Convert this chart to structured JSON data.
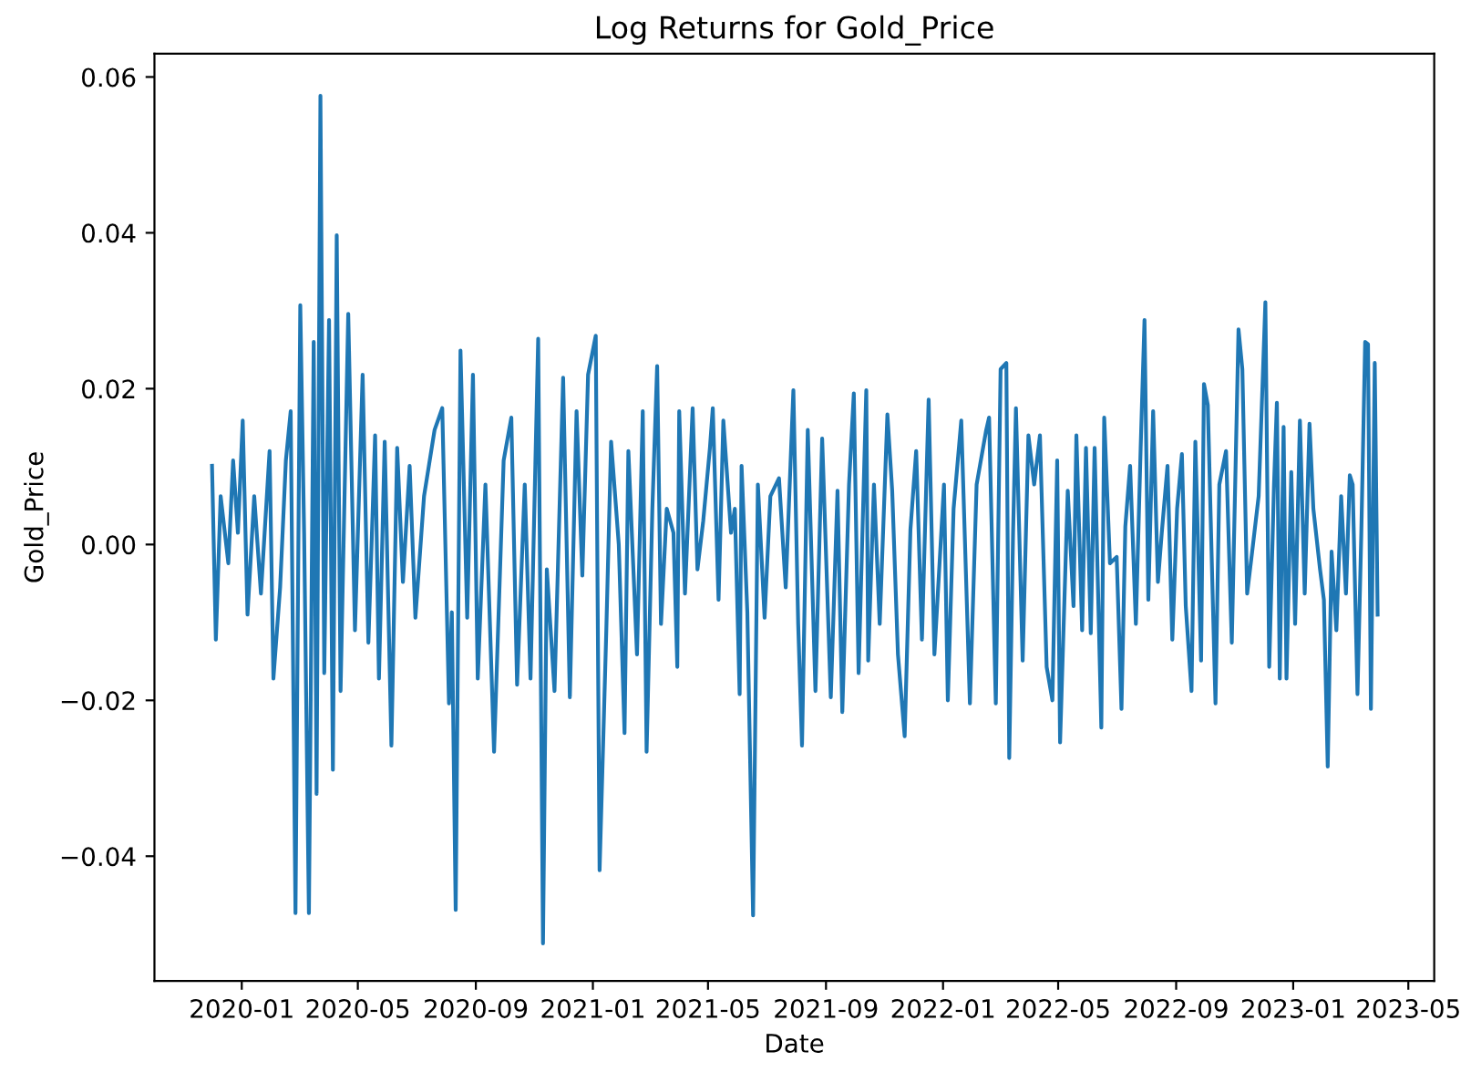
{
  "chart_data": {
    "type": "line",
    "title": "Log Returns for Gold_Price",
    "xlabel": "Date",
    "ylabel": "Gold_Price",
    "xlim": [
      "2019-10-02",
      "2023-05-28"
    ],
    "xticks": [
      "2020-01",
      "2020-05",
      "2020-09",
      "2021-01",
      "2021-05",
      "2021-09",
      "2022-01",
      "2022-05",
      "2022-09",
      "2023-01",
      "2023-05"
    ],
    "ylim": [
      -0.056,
      0.063
    ],
    "yticks": [
      {
        "value": -0.04,
        "label": "−0.04"
      },
      {
        "value": -0.02,
        "label": "−0.02"
      },
      {
        "value": 0,
        "label": "0.00"
      },
      0.02,
      0.04,
      0.06
    ],
    "grid": false,
    "legend": false,
    "marker": "none",
    "line_style": "solid",
    "series": [
      {
        "color": "#1f77b4",
        "x": [
          "2019-12-01",
          "2019-12-05",
          "2019-12-10",
          "2019-12-18",
          "2019-12-23",
          "2019-12-28",
          "2020-01-02",
          "2020-01-07",
          "2020-01-14",
          "2020-01-21",
          "2020-01-30",
          "2020-02-03",
          "2020-02-10",
          "2020-02-16",
          "2020-02-21",
          "2020-02-26",
          "2020-03-02",
          "2020-03-06",
          "2020-03-11",
          "2020-03-16",
          "2020-03-19",
          "2020-03-23",
          "2020-03-27",
          "2020-04-01",
          "2020-04-05",
          "2020-04-09",
          "2020-04-13",
          "2020-04-21",
          "2020-04-28",
          "2020-05-06",
          "2020-05-12",
          "2020-05-19",
          "2020-05-23",
          "2020-05-29",
          "2020-06-05",
          "2020-06-11",
          "2020-06-17",
          "2020-06-24",
          "2020-06-30",
          "2020-07-09",
          "2020-07-20",
          "2020-07-28",
          "2020-08-04",
          "2020-08-07",
          "2020-08-11",
          "2020-08-16",
          "2020-08-23",
          "2020-08-29",
          "2020-09-03",
          "2020-09-11",
          "2020-09-20",
          "2020-09-30",
          "2020-10-08",
          "2020-10-14",
          "2020-10-22",
          "2020-10-28",
          "2020-11-05",
          "2020-11-10",
          "2020-11-14",
          "2020-11-22",
          "2020-12-01",
          "2020-12-08",
          "2020-12-15",
          "2020-12-21",
          "2020-12-27",
          "2021-01-04",
          "2021-01-08",
          "2021-01-15",
          "2021-01-20",
          "2021-01-28",
          "2021-02-03",
          "2021-02-07",
          "2021-02-16",
          "2021-02-22",
          "2021-02-26",
          "2021-03-04",
          "2021-03-09",
          "2021-03-13",
          "2021-03-19",
          "2021-03-26",
          "2021-03-30",
          "2021-04-01",
          "2021-04-07",
          "2021-04-15",
          "2021-04-20",
          "2021-04-26",
          "2021-05-03",
          "2021-05-06",
          "2021-05-12",
          "2021-05-17",
          "2021-05-25",
          "2021-05-29",
          "2021-06-03",
          "2021-06-05",
          "2021-06-11",
          "2021-06-17",
          "2021-06-22",
          "2021-06-29",
          "2021-07-05",
          "2021-07-14",
          "2021-07-21",
          "2021-07-29",
          "2021-08-03",
          "2021-08-07",
          "2021-08-13",
          "2021-08-21",
          "2021-08-28",
          "2021-09-06",
          "2021-09-13",
          "2021-09-18",
          "2021-09-25",
          "2021-09-30",
          "2021-10-05",
          "2021-10-13",
          "2021-10-15",
          "2021-10-21",
          "2021-10-27",
          "2021-11-04",
          "2021-11-09",
          "2021-11-15",
          "2021-11-22",
          "2021-11-28",
          "2021-12-04",
          "2021-12-10",
          "2021-12-17",
          "2021-12-23",
          "2022-01-02",
          "2022-01-06",
          "2022-01-12",
          "2022-01-20",
          "2022-01-29",
          "2022-02-05",
          "2022-02-15",
          "2022-02-18",
          "2022-02-25",
          "2022-03-02",
          "2022-03-08",
          "2022-03-11",
          "2022-03-15",
          "2022-03-18",
          "2022-03-25",
          "2022-03-31",
          "2022-04-06",
          "2022-04-12",
          "2022-04-19",
          "2022-04-25",
          "2022-04-30",
          "2022-05-03",
          "2022-05-11",
          "2022-05-17",
          "2022-05-20",
          "2022-05-26",
          "2022-05-30",
          "2022-06-04",
          "2022-06-08",
          "2022-06-15",
          "2022-06-18",
          "2022-06-24",
          "2022-07-01",
          "2022-07-06",
          "2022-07-10",
          "2022-07-15",
          "2022-07-21",
          "2022-07-26",
          "2022-07-30",
          "2022-08-03",
          "2022-08-08",
          "2022-08-13",
          "2022-08-17",
          "2022-08-23",
          "2022-08-28",
          "2022-09-02",
          "2022-09-07",
          "2022-09-11",
          "2022-09-17",
          "2022-09-21",
          "2022-09-27",
          "2022-09-30",
          "2022-10-04",
          "2022-10-09",
          "2022-10-12",
          "2022-10-16",
          "2022-10-23",
          "2022-10-29",
          "2022-11-05",
          "2022-11-09",
          "2022-11-14",
          "2022-11-20",
          "2022-11-26",
          "2022-12-03",
          "2022-12-07",
          "2022-12-12",
          "2022-12-15",
          "2022-12-18",
          "2022-12-22",
          "2022-12-25",
          "2022-12-30",
          "2023-01-03",
          "2023-01-08",
          "2023-01-13",
          "2023-01-18",
          "2023-01-22",
          "2023-01-29",
          "2023-02-02",
          "2023-02-06",
          "2023-02-10",
          "2023-02-15",
          "2023-02-20",
          "2023-02-25",
          "2023-03-01",
          "2023-03-04",
          "2023-03-09",
          "2023-03-13",
          "2023-03-17",
          "2023-03-20",
          "2023-03-23",
          "2023-03-27",
          "2023-03-30"
        ],
        "values": [
          0.0101,
          -0.0122,
          0.0062,
          -0.0024,
          0.0108,
          0.0015,
          0.0159,
          -0.009,
          0.0062,
          -0.0063,
          0.012,
          -0.0172,
          -0.0055,
          0.0108,
          0.0171,
          -0.0473,
          0.0307,
          0.0015,
          -0.0473,
          0.026,
          -0.032,
          0.0576,
          -0.0165,
          0.0288,
          -0.0289,
          0.0397,
          -0.0188,
          0.0296,
          -0.011,
          0.0218,
          -0.0126,
          0.014,
          -0.0172,
          0.0132,
          -0.0258,
          0.0124,
          -0.0048,
          0.0101,
          -0.0094,
          0.0062,
          0.0147,
          0.0175,
          -0.0204,
          -0.0087,
          -0.0469,
          0.0249,
          -0.0094,
          0.0218,
          -0.0172,
          0.0077,
          -0.0266,
          0.0108,
          0.0163,
          -0.018,
          0.0077,
          -0.0172,
          0.0264,
          -0.0512,
          -0.0032,
          -0.0188,
          0.0214,
          -0.0196,
          0.0171,
          -0.004,
          0.0218,
          0.0268,
          -0.0418,
          -0.011,
          0.0132,
          0.0,
          -0.0242,
          0.012,
          -0.0141,
          0.0171,
          -0.0266,
          0.0046,
          0.0229,
          -0.0102,
          0.0046,
          0.0015,
          -0.0157,
          0.0171,
          -0.0063,
          0.0175,
          -0.0032,
          0.003,
          0.0124,
          0.0175,
          -0.0071,
          0.0159,
          0.0015,
          0.0046,
          -0.0192,
          0.0101,
          -0.0087,
          -0.0476,
          0.0077,
          -0.0094,
          0.0062,
          0.0085,
          -0.0055,
          0.0198,
          -0.0102,
          -0.0258,
          0.0147,
          -0.0188,
          0.0136,
          -0.0196,
          0.0069,
          -0.0215,
          0.0077,
          0.0194,
          -0.0165,
          0.0198,
          -0.0149,
          0.0077,
          -0.0102,
          0.0167,
          0.0069,
          -0.0141,
          -0.0246,
          0.0019,
          0.012,
          -0.0122,
          0.0186,
          -0.0141,
          0.0077,
          -0.02,
          0.0046,
          0.0159,
          -0.0204,
          0.0077,
          0.0147,
          0.0163,
          -0.0204,
          0.0225,
          0.0233,
          -0.0274,
          0.0015,
          0.0175,
          -0.0149,
          0.014,
          0.0077,
          0.014,
          -0.0157,
          -0.02,
          0.0108,
          -0.0254,
          0.0069,
          -0.0079,
          0.014,
          -0.011,
          0.0124,
          -0.0114,
          0.0124,
          -0.0235,
          0.0163,
          -0.0024,
          -0.0016,
          -0.0211,
          0.0023,
          0.0101,
          -0.0102,
          0.0124,
          0.0288,
          -0.0071,
          0.0171,
          -0.0048,
          0.0015,
          0.0101,
          -0.0122,
          0.0046,
          0.0116,
          -0.0079,
          -0.0188,
          0.0132,
          -0.0149,
          0.0206,
          0.0179,
          -0.0063,
          -0.0204,
          0.0077,
          0.012,
          -0.0126,
          0.0276,
          0.0225,
          -0.0063,
          -0.0001,
          0.0062,
          0.0311,
          -0.0157,
          0.0077,
          0.0182,
          -0.0172,
          0.0151,
          -0.0172,
          0.0093,
          -0.0102,
          0.0159,
          -0.0063,
          0.0155,
          0.0046,
          -0.0032,
          -0.0071,
          -0.0285,
          -0.0009,
          -0.011,
          0.0062,
          -0.0063,
          0.0089,
          0.0077,
          -0.0192,
          0.0015,
          0.026,
          0.0257,
          -0.0211,
          0.0233,
          -0.009
        ]
      }
    ]
  }
}
